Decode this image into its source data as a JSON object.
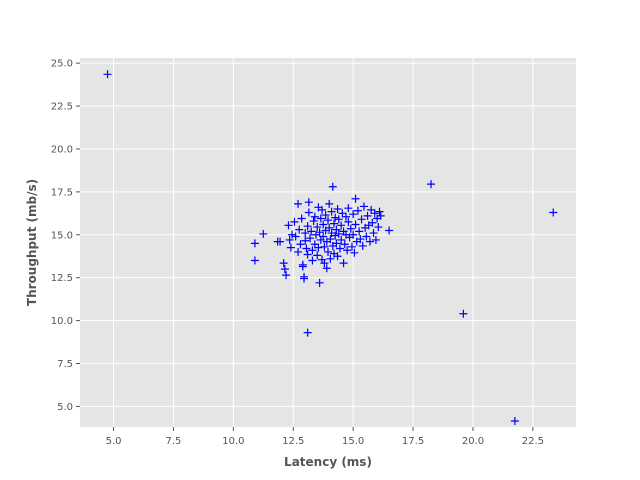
{
  "chart_data": {
    "type": "scatter",
    "xlabel": "Latency (ms)",
    "ylabel": "Throughput (mb/s)",
    "xlim": [
      3.6,
      24.3
    ],
    "ylim": [
      3.8,
      25.3
    ],
    "xticks": [
      5.0,
      7.5,
      10.0,
      12.5,
      15.0,
      17.5,
      20.0,
      22.5
    ],
    "xtick_labels": [
      "5.0",
      "7.5",
      "10.0",
      "12.5",
      "15.0",
      "17.5",
      "20.0",
      "22.5"
    ],
    "yticks": [
      5.0,
      7.5,
      10.0,
      12.5,
      15.0,
      17.5,
      20.0,
      22.5,
      25.0
    ],
    "ytick_labels": [
      "5.0",
      "7.5",
      "10.0",
      "12.5",
      "15.0",
      "17.5",
      "20.0",
      "22.5",
      "25.0"
    ],
    "grid": true,
    "background_color": "#e5e5e5",
    "grid_color": "#ffffff",
    "marker": "plus",
    "marker_color": "#0000ff",
    "series": [
      {
        "values": [
          [
            4.75,
            24.35
          ],
          [
            18.25,
            17.95
          ],
          [
            19.6,
            10.4
          ],
          [
            21.75,
            4.15
          ],
          [
            23.35,
            16.3
          ],
          [
            13.1,
            9.3
          ],
          [
            10.9,
            14.5
          ],
          [
            10.9,
            13.5
          ],
          [
            11.25,
            15.05
          ],
          [
            11.85,
            14.6
          ],
          [
            11.95,
            14.6
          ],
          [
            12.1,
            13.35
          ],
          [
            12.15,
            13.0
          ],
          [
            12.2,
            12.65
          ],
          [
            12.3,
            15.55
          ],
          [
            12.35,
            14.7
          ],
          [
            12.4,
            14.25
          ],
          [
            12.45,
            15.0
          ],
          [
            12.55,
            15.75
          ],
          [
            12.6,
            14.9
          ],
          [
            12.7,
            14.0
          ],
          [
            12.7,
            16.8
          ],
          [
            12.75,
            15.3
          ],
          [
            12.8,
            14.45
          ],
          [
            12.85,
            15.95
          ],
          [
            12.9,
            13.15
          ],
          [
            12.9,
            13.25
          ],
          [
            12.95,
            12.55
          ],
          [
            12.95,
            12.45
          ],
          [
            13.0,
            15.1
          ],
          [
            13.0,
            14.65
          ],
          [
            13.05,
            14.2
          ],
          [
            13.1,
            13.85
          ],
          [
            13.1,
            15.5
          ],
          [
            13.15,
            16.3
          ],
          [
            13.15,
            16.9
          ],
          [
            13.2,
            14.8
          ],
          [
            13.25,
            15.2
          ],
          [
            13.3,
            14.1
          ],
          [
            13.3,
            13.5
          ],
          [
            13.35,
            15.8
          ],
          [
            13.4,
            14.45
          ],
          [
            13.4,
            16.05
          ],
          [
            13.45,
            15.0
          ],
          [
            13.5,
            13.8
          ],
          [
            13.5,
            15.45
          ],
          [
            13.55,
            14.25
          ],
          [
            13.55,
            16.6
          ],
          [
            13.6,
            12.2
          ],
          [
            13.6,
            15.15
          ],
          [
            13.65,
            14.7
          ],
          [
            13.65,
            15.95
          ],
          [
            13.7,
            13.55
          ],
          [
            13.7,
            16.45
          ],
          [
            13.75,
            14.9
          ],
          [
            13.75,
            15.6
          ],
          [
            13.8,
            13.35
          ],
          [
            13.8,
            14.3
          ],
          [
            13.85,
            15.25
          ],
          [
            13.85,
            16.15
          ],
          [
            13.9,
            14.6
          ],
          [
            13.9,
            13.05
          ],
          [
            13.95,
            15.85
          ],
          [
            13.95,
            14.0
          ],
          [
            14.0,
            15.4
          ],
          [
            14.0,
            16.8
          ],
          [
            14.05,
            14.75
          ],
          [
            14.05,
            13.6
          ],
          [
            14.1,
            15.1
          ],
          [
            14.1,
            16.35
          ],
          [
            14.15,
            17.8
          ],
          [
            14.15,
            14.35
          ],
          [
            14.2,
            15.65
          ],
          [
            14.2,
            13.9
          ],
          [
            14.25,
            14.95
          ],
          [
            14.25,
            16.0
          ],
          [
            14.3,
            15.3
          ],
          [
            14.3,
            14.5
          ],
          [
            14.35,
            16.5
          ],
          [
            14.35,
            13.75
          ],
          [
            14.4,
            15.05
          ],
          [
            14.4,
            15.9
          ],
          [
            14.45,
            14.2
          ],
          [
            14.5,
            15.55
          ],
          [
            14.5,
            14.7
          ],
          [
            14.55,
            16.25
          ],
          [
            14.6,
            13.35
          ],
          [
            14.6,
            15.2
          ],
          [
            14.65,
            14.45
          ],
          [
            14.7,
            16.05
          ],
          [
            14.7,
            15.0
          ],
          [
            14.75,
            14.1
          ],
          [
            14.8,
            15.75
          ],
          [
            14.8,
            16.55
          ],
          [
            14.85,
            14.85
          ],
          [
            14.9,
            15.35
          ],
          [
            14.95,
            14.3
          ],
          [
            15.0,
            16.2
          ],
          [
            15.0,
            15.0
          ],
          [
            15.05,
            13.95
          ],
          [
            15.1,
            17.1
          ],
          [
            15.1,
            15.6
          ],
          [
            15.15,
            14.6
          ],
          [
            15.2,
            16.4
          ],
          [
            15.25,
            15.2
          ],
          [
            15.3,
            14.75
          ],
          [
            15.35,
            15.9
          ],
          [
            15.4,
            14.35
          ],
          [
            15.45,
            16.65
          ],
          [
            15.5,
            15.4
          ],
          [
            15.55,
            14.9
          ],
          [
            15.6,
            16.1
          ],
          [
            15.65,
            15.55
          ],
          [
            15.7,
            14.6
          ],
          [
            15.75,
            16.45
          ],
          [
            15.8,
            15.7
          ],
          [
            15.85,
            15.1
          ],
          [
            15.9,
            16.25
          ],
          [
            15.95,
            14.7
          ],
          [
            16.0,
            15.95
          ],
          [
            16.05,
            15.45
          ],
          [
            16.1,
            16.35
          ],
          [
            16.15,
            16.1
          ],
          [
            16.5,
            15.25
          ]
        ]
      }
    ]
  }
}
